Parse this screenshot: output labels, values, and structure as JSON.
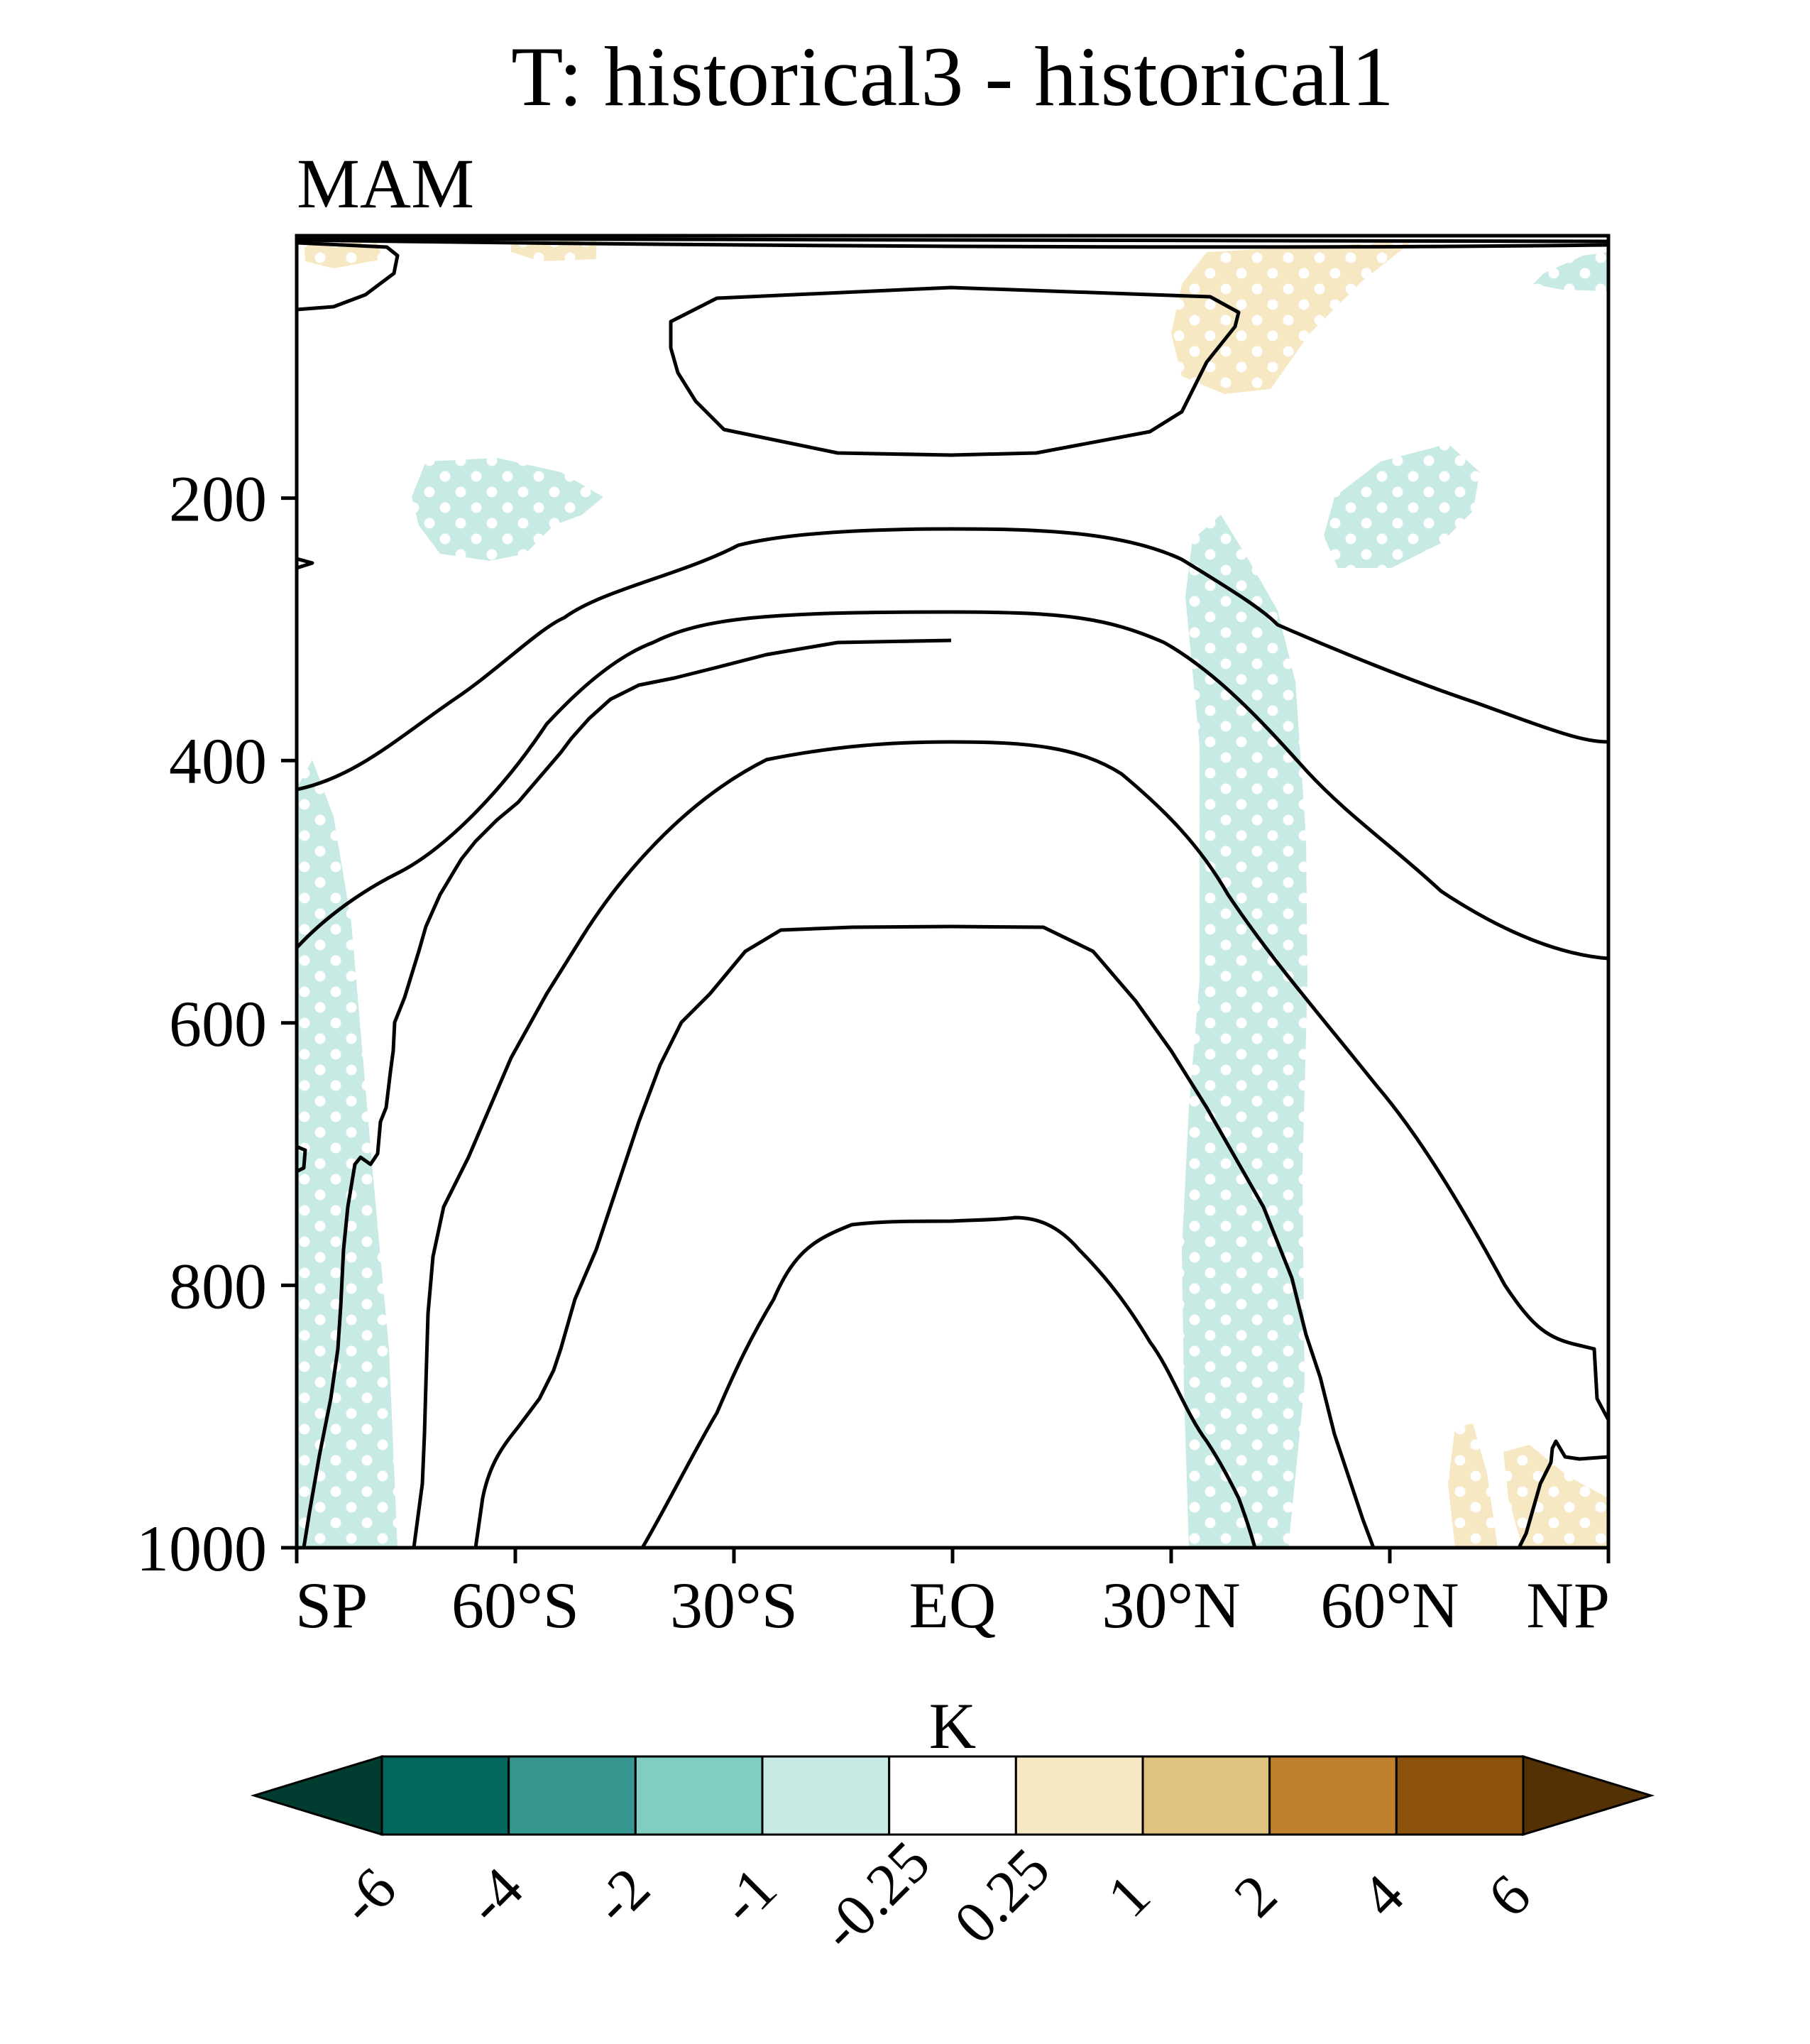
{
  "chart_data": {
    "type": "heatmap",
    "title": "T: historical3 - historical1",
    "subtitle": "MAM",
    "xlabel": "",
    "ylabel": "",
    "x_ticks": [
      "SP",
      "60°S",
      "30°S",
      "EQ",
      "30°N",
      "60°N",
      "NP"
    ],
    "x_tick_values": [
      -90,
      -60,
      -30,
      0,
      30,
      60,
      90
    ],
    "y_ticks": [
      "200",
      "400",
      "600",
      "800",
      "1000"
    ],
    "y_tick_values": [
      200,
      400,
      600,
      800,
      1000
    ],
    "xlim": [
      -90,
      90
    ],
    "ylim": [
      1000,
      0
    ],
    "grid": false,
    "colorbar": {
      "unit": "K",
      "levels": [
        "-6",
        "-4",
        "-2",
        "-1",
        "-0.25",
        "0.25",
        "1",
        "2",
        "4",
        "6"
      ],
      "colors": [
        "#003c30",
        "#01665e",
        "#35978f",
        "#80cdc1",
        "#c7eae5",
        "#ffffff",
        "#f6e8c3",
        "#dfc27d",
        "#bf812d",
        "#8c510a",
        "#543005"
      ],
      "extend": "both"
    },
    "shading_colors": {
      "negative": "#c7eae5",
      "positive": "#f6e8c3"
    },
    "stippling": "dots indicate significance",
    "contours": "black lines of climatological temperature"
  }
}
